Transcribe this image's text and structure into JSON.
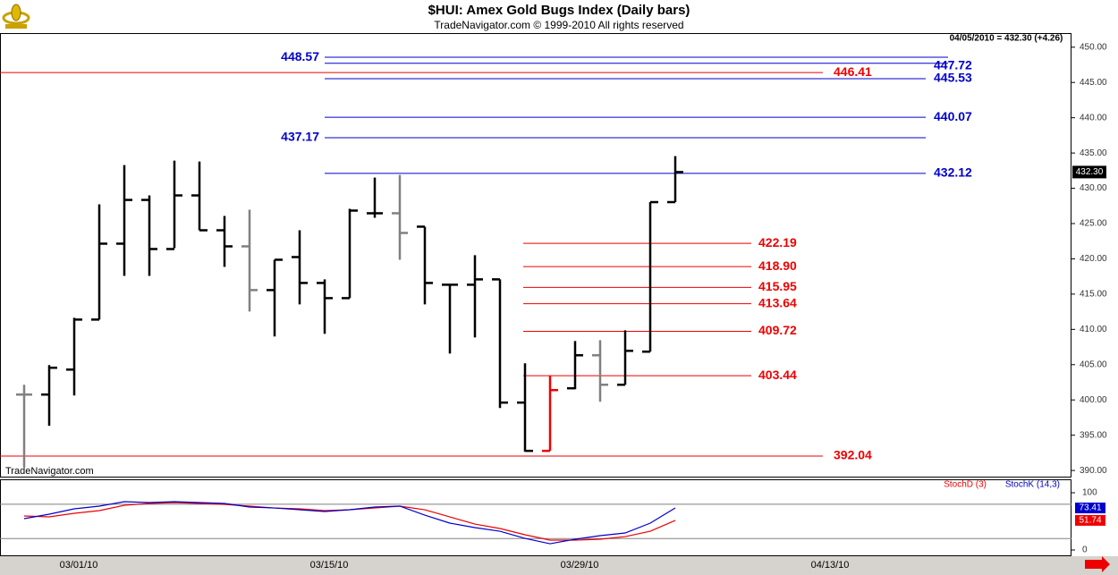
{
  "chart_data": [
    {
      "type": "ohlc",
      "title": "$HUI:  Amex Gold Bugs Index  (Daily bars)",
      "subtitle": "TradeNavigator.com © 1999-2010 All rights reserved",
      "annotation": "04/05/2010 = 432.30 (+4.26)",
      "watermark": "TradeNavigator.com",
      "price_tag": "432.30",
      "categories": [
        null,
        null,
        "03/01/10",
        null,
        null,
        null,
        null,
        null,
        null,
        null,
        null,
        null,
        "03/15/10",
        null,
        null,
        null,
        null,
        null,
        null,
        null,
        null,
        null,
        "03/29/10",
        null,
        null,
        null,
        null,
        null,
        null,
        null,
        null,
        null,
        "04/13/10",
        null,
        null,
        null,
        null,
        null,
        null,
        null,
        null,
        null
      ],
      "open": [
        400.76,
        400.76,
        404.3,
        411.39,
        422.15,
        428.35,
        421.39,
        428.99,
        424.05,
        421.77,
        415.57,
        420.25,
        416.58,
        414.43,
        426.46,
        426.46,
        424.56,
        416.33,
        416.33,
        417.09,
        399.62,
        392.78,
        401.65,
        406.33,
        402.15,
        406.84,
        428.04,
        null,
        null,
        null,
        null,
        null,
        null,
        null,
        null,
        null,
        null,
        null,
        null,
        null,
        null,
        null
      ],
      "high": [
        402.15,
        404.94,
        411.65,
        427.72,
        433.29,
        428.99,
        433.92,
        433.8,
        426.08,
        426.96,
        419.87,
        424.05,
        417.09,
        427.09,
        431.52,
        431.9,
        424.56,
        416.33,
        420.51,
        417.09,
        405.19,
        403.42,
        408.35,
        408.48,
        409.87,
        428.04,
        434.56,
        null,
        null,
        null,
        null,
        null,
        null,
        null,
        null,
        null,
        null,
        null,
        null,
        null,
        null,
        null
      ],
      "low": [
        390.51,
        396.33,
        400.63,
        411.39,
        417.59,
        417.59,
        421.52,
        424.05,
        418.86,
        412.53,
        408.99,
        413.54,
        409.37,
        414.43,
        425.82,
        419.87,
        413.54,
        406.58,
        408.86,
        398.86,
        392.66,
        392.78,
        401.52,
        399.75,
        402.15,
        406.84,
        428.04,
        null,
        null,
        null,
        null,
        null,
        null,
        null,
        null,
        null,
        null,
        null,
        null,
        null,
        null,
        null
      ],
      "close": [
        400.76,
        404.56,
        411.39,
        422.15,
        428.35,
        421.39,
        428.99,
        424.05,
        421.77,
        415.57,
        419.87,
        416.58,
        414.43,
        426.84,
        426.46,
        423.67,
        416.58,
        416.33,
        417.09,
        399.62,
        392.78,
        401.39,
        406.33,
        402.15,
        406.96,
        428.04,
        432.3,
        null,
        null,
        null,
        null,
        null,
        null,
        null,
        null,
        null,
        null,
        null,
        null,
        null,
        null,
        null
      ],
      "bar_colors": [
        "#808080",
        "#000000",
        "#000000",
        "#000000",
        "#000000",
        "#000000",
        "#000000",
        "#000000",
        "#000000",
        "#808080",
        "#000000",
        "#000000",
        "#000000",
        "#000000",
        "#000000",
        "#808080",
        "#000000",
        "#000000",
        "#000000",
        "#000000",
        "#000000",
        "#ee0000",
        "#000000",
        "#808080",
        "#000000",
        "#000000",
        "#000000",
        null,
        null,
        null,
        null,
        null,
        null,
        null,
        null,
        null,
        null,
        null,
        null,
        null,
        null,
        null
      ],
      "ylim": [
        389,
        452
      ],
      "yticks": [
        {
          "value": 390,
          "label": "390.00"
        },
        {
          "value": 395,
          "label": "395.00"
        },
        {
          "value": 400,
          "label": "400.00"
        },
        {
          "value": 405,
          "label": "405.00"
        },
        {
          "value": 410,
          "label": "410.00"
        },
        {
          "value": 415,
          "label": "415.00"
        },
        {
          "value": 420,
          "label": "420.00"
        },
        {
          "value": 425,
          "label": "425.00"
        },
        {
          "value": 430,
          "label": "430.00"
        },
        {
          "value": 435,
          "label": "435.00"
        },
        {
          "value": 440,
          "label": "440.00"
        },
        {
          "value": 445,
          "label": "445.00"
        },
        {
          "value": 450,
          "label": "450.00"
        }
      ],
      "levels": [
        {
          "value": 448.57,
          "color": "#0000cc"
        },
        {
          "value": 447.72,
          "color": "#0000cc"
        },
        {
          "value": 446.41,
          "color": "#ee0000"
        },
        {
          "value": 445.53,
          "color": "#0000cc"
        },
        {
          "value": 440.07,
          "color": "#0000cc"
        },
        {
          "value": 437.17,
          "color": "#0000cc"
        },
        {
          "value": 432.12,
          "color": "#0000cc"
        },
        {
          "value": 422.19,
          "color": "#ee0000"
        },
        {
          "value": 418.9,
          "label": "418.90",
          "color": "#ee0000"
        },
        {
          "value": 415.95,
          "color": "#ee0000"
        },
        {
          "value": 413.64,
          "color": "#ee0000"
        },
        {
          "value": 409.72,
          "color": "#ee0000"
        },
        {
          "value": 403.44,
          "color": "#ee0000"
        },
        {
          "value": 392.04,
          "color": "#ee0000"
        }
      ]
    },
    {
      "type": "line",
      "series": [
        {
          "name": "StochD (3)",
          "color": "#ee0000",
          "tag": "51.74",
          "values": [
            59.4,
            57.8,
            64.1,
            68.8,
            78.1,
            81.3,
            82.8,
            81.3,
            79.7,
            76.6,
            73.4,
            71.9,
            68.8,
            70.3,
            73.4,
            76.6,
            70.3,
            57.8,
            45.3,
            37.5,
            26.6,
            17.2,
            17.2,
            18.8,
            23.4,
            32.8,
            51.74,
            null,
            null,
            null,
            null,
            null,
            null,
            null,
            null,
            null,
            null,
            null,
            null,
            null,
            null,
            null
          ]
        },
        {
          "name": "StochK (14,3)",
          "color": "#0000cc",
          "tag": "73.41",
          "values": [
            54.7,
            62.5,
            71.9,
            76.6,
            84.4,
            82.8,
            84.4,
            82.8,
            81.3,
            75.0,
            73.4,
            70.3,
            67.2,
            70.3,
            75.0,
            76.6,
            60.9,
            46.9,
            39.1,
            32.8,
            20.3,
            10.9,
            18.8,
            25.0,
            29.7,
            46.9,
            73.41,
            null,
            null,
            null,
            null,
            null,
            null,
            null,
            null,
            null,
            null,
            null,
            null,
            null,
            null,
            null
          ]
        }
      ],
      "ylim": [
        -10.9,
        121.9
      ],
      "yticks": [
        0,
        100
      ],
      "hlines": [
        20,
        80
      ]
    }
  ]
}
